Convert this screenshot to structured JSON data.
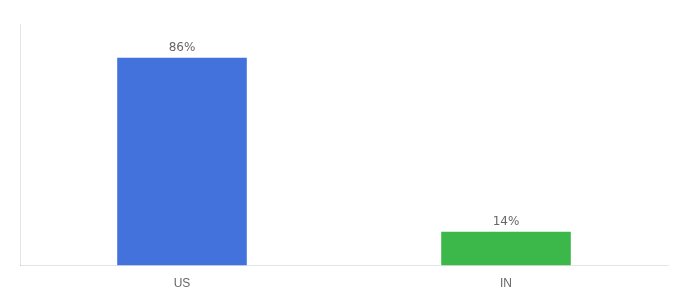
{
  "chart_data": {
    "type": "bar",
    "categories": [
      "US",
      "IN"
    ],
    "values": [
      86,
      14
    ],
    "value_labels": [
      "86%",
      "14%"
    ],
    "colors": [
      "#4472dd",
      "#3cb84a"
    ],
    "ylim": [
      0,
      100
    ],
    "grid": false,
    "tick_labels": "x",
    "data_labels": true
  }
}
